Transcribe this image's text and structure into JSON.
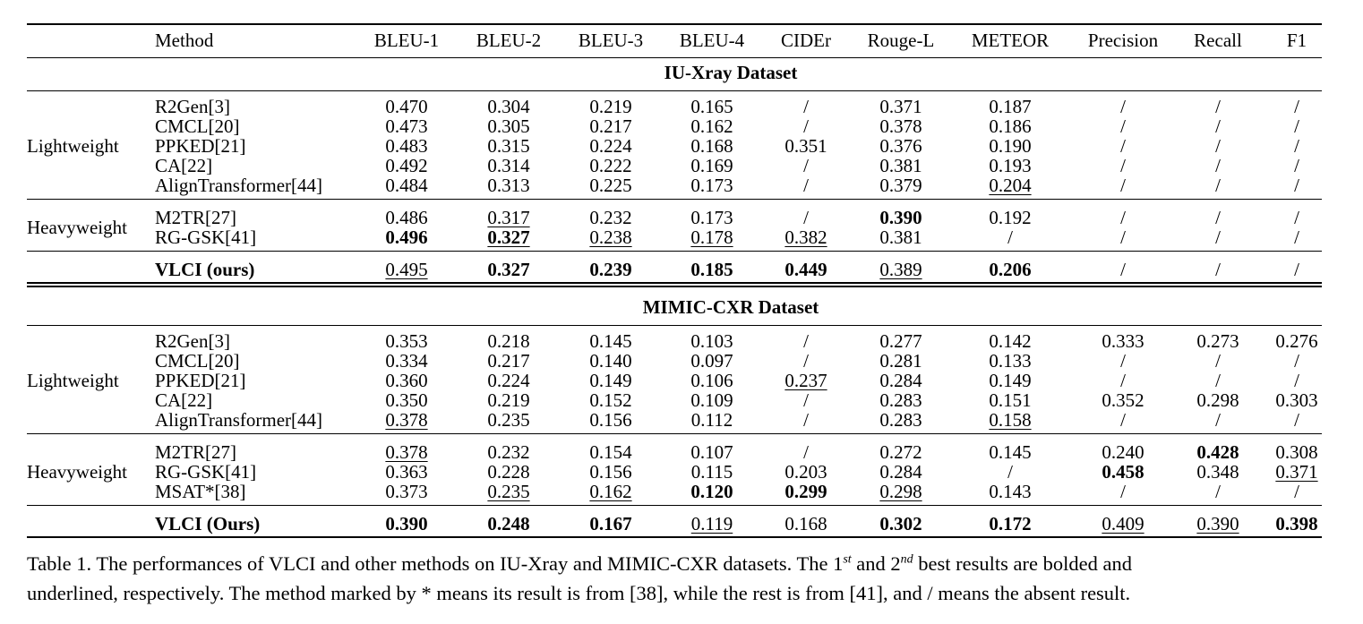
{
  "columns": [
    "Method",
    "BLEU-1",
    "BLEU-2",
    "BLEU-3",
    "BLEU-4",
    "CIDEr",
    "Rouge-L",
    "METEOR",
    "Precision",
    "Recall",
    "F1"
  ],
  "sections": [
    {
      "title": "IU-Xray Dataset",
      "groups": [
        {
          "label": "Lightweight",
          "rows": [
            {
              "method": "R2Gen[3]",
              "values": [
                "0.470",
                "0.304",
                "0.219",
                "0.165",
                "/",
                "0.371",
                "0.187",
                "/",
                "/",
                "/"
              ],
              "bold": [],
              "underline": []
            },
            {
              "method": "CMCL[20]",
              "values": [
                "0.473",
                "0.305",
                "0.217",
                "0.162",
                "/",
                "0.378",
                "0.186",
                "/",
                "/",
                "/"
              ],
              "bold": [],
              "underline": []
            },
            {
              "method": "PPKED[21]",
              "values": [
                "0.483",
                "0.315",
                "0.224",
                "0.168",
                "0.351",
                "0.376",
                "0.190",
                "/",
                "/",
                "/"
              ],
              "bold": [],
              "underline": []
            },
            {
              "method": "CA[22]",
              "values": [
                "0.492",
                "0.314",
                "0.222",
                "0.169",
                "/",
                "0.381",
                "0.193",
                "/",
                "/",
                "/"
              ],
              "bold": [],
              "underline": []
            },
            {
              "method": "AlignTransformer[44]",
              "values": [
                "0.484",
                "0.313",
                "0.225",
                "0.173",
                "/",
                "0.379",
                "0.204",
                "/",
                "/",
                "/"
              ],
              "bold": [],
              "underline": [
                6
              ]
            }
          ]
        },
        {
          "label": "Heavyweight",
          "rows": [
            {
              "method": "M2TR[27]",
              "values": [
                "0.486",
                "0.317",
                "0.232",
                "0.173",
                "/",
                "0.390",
                "0.192",
                "/",
                "/",
                "/"
              ],
              "bold": [
                5
              ],
              "underline": [
                1
              ]
            },
            {
              "method": "RG-GSK[41]",
              "values": [
                "0.496",
                "0.327",
                "0.238",
                "0.178",
                "0.382",
                "0.381",
                "/",
                "/",
                "/",
                "/"
              ],
              "bold": [
                0,
                1
              ],
              "underline": [
                1,
                2,
                3,
                4
              ]
            }
          ]
        }
      ],
      "ours": {
        "method": "VLCI (ours)",
        "values": [
          "0.495",
          "0.327",
          "0.239",
          "0.185",
          "0.449",
          "0.389",
          "0.206",
          "/",
          "/",
          "/"
        ],
        "bold": [
          1,
          2,
          3,
          4,
          6
        ],
        "underline": [
          0,
          5
        ]
      }
    },
    {
      "title": "MIMIC-CXR Dataset",
      "groups": [
        {
          "label": "Lightweight",
          "rows": [
            {
              "method": "R2Gen[3]",
              "values": [
                "0.353",
                "0.218",
                "0.145",
                "0.103",
                "/",
                "0.277",
                "0.142",
                "0.333",
                "0.273",
                "0.276"
              ],
              "bold": [],
              "underline": []
            },
            {
              "method": "CMCL[20]",
              "values": [
                "0.334",
                "0.217",
                "0.140",
                "0.097",
                "/",
                "0.281",
                "0.133",
                "/",
                "/",
                "/"
              ],
              "bold": [],
              "underline": []
            },
            {
              "method": "PPKED[21]",
              "values": [
                "0.360",
                "0.224",
                "0.149",
                "0.106",
                "0.237",
                "0.284",
                "0.149",
                "/",
                "/",
                "/"
              ],
              "bold": [],
              "underline": [
                4
              ]
            },
            {
              "method": "CA[22]",
              "values": [
                "0.350",
                "0.219",
                "0.152",
                "0.109",
                "/",
                "0.283",
                "0.151",
                "0.352",
                "0.298",
                "0.303"
              ],
              "bold": [],
              "underline": []
            },
            {
              "method": "AlignTransformer[44]",
              "values": [
                "0.378",
                "0.235",
                "0.156",
                "0.112",
                "/",
                "0.283",
                "0.158",
                "/",
                "/",
                "/"
              ],
              "bold": [],
              "underline": [
                0,
                6
              ]
            }
          ]
        },
        {
          "label": "Heavyweight",
          "rows": [
            {
              "method": "M2TR[27]",
              "values": [
                "0.378",
                "0.232",
                "0.154",
                "0.107",
                "/",
                "0.272",
                "0.145",
                "0.240",
                "0.428",
                "0.308"
              ],
              "bold": [
                8
              ],
              "underline": [
                0
              ]
            },
            {
              "method": "RG-GSK[41]",
              "values": [
                "0.363",
                "0.228",
                "0.156",
                "0.115",
                "0.203",
                "0.284",
                "/",
                "0.458",
                "0.348",
                "0.371"
              ],
              "bold": [
                7
              ],
              "underline": [
                9
              ]
            },
            {
              "method": "MSAT*[38]",
              "values": [
                "0.373",
                "0.235",
                "0.162",
                "0.120",
                "0.299",
                "0.298",
                "0.143",
                "/",
                "/",
                "/"
              ],
              "bold": [
                3,
                4
              ],
              "underline": [
                1,
                2,
                5
              ]
            }
          ]
        }
      ],
      "ours": {
        "method": "VLCI (Ours)",
        "values": [
          "0.390",
          "0.248",
          "0.167",
          "0.119",
          "0.168",
          "0.302",
          "0.172",
          "0.409",
          "0.390",
          "0.398"
        ],
        "bold": [
          0,
          1,
          2,
          5,
          6,
          9
        ],
        "underline": [
          3,
          7,
          8
        ]
      }
    }
  ],
  "caption": {
    "line1_a": "Table 1. The performances of VLCI and other methods on IU-Xray and MIMIC-CXR datasets. The 1",
    "sup1": "st",
    "line1_b": " and 2",
    "sup2": "nd",
    "line1_c": " best results are bolded and",
    "line2": "underlined, respectively. The method marked by * means its result is from [38], while the rest is from [41], and / means the absent result."
  }
}
